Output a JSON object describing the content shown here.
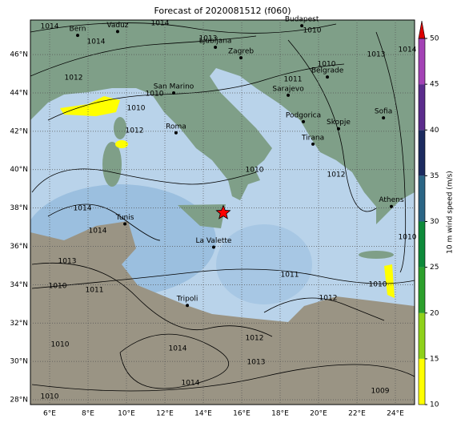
{
  "title": "Forecast of 2020081512 (f060)",
  "map": {
    "lonlim": [
      5,
      25
    ],
    "latlim": [
      27.75,
      47.8
    ],
    "grid": true,
    "xticks": [
      {
        "value": 6,
        "label": "6°E"
      },
      {
        "value": 8,
        "label": "8°E"
      },
      {
        "value": 10,
        "label": "10°E"
      },
      {
        "value": 12,
        "label": "12°E"
      },
      {
        "value": 14,
        "label": "14°E"
      },
      {
        "value": 16,
        "label": "16°E"
      },
      {
        "value": 18,
        "label": "18°E"
      },
      {
        "value": 20,
        "label": "20°E"
      },
      {
        "value": 22,
        "label": "22°E"
      },
      {
        "value": 24,
        "label": "24°E"
      }
    ],
    "yticks": [
      {
        "value": 28,
        "label": "28°N"
      },
      {
        "value": 30,
        "label": "30°N"
      },
      {
        "value": 32,
        "label": "32°N"
      },
      {
        "value": 34,
        "label": "34°N"
      },
      {
        "value": 36,
        "label": "36°N"
      },
      {
        "value": 38,
        "label": "38°N"
      },
      {
        "value": 40,
        "label": "40°N"
      },
      {
        "value": 42,
        "label": "42°N"
      },
      {
        "value": 44,
        "label": "44°N"
      },
      {
        "value": 46,
        "label": "46°N"
      }
    ]
  },
  "cities": [
    {
      "name": "Bern",
      "lon": 7.46,
      "lat": 47.0
    },
    {
      "name": "Vaduz",
      "lon": 9.54,
      "lat": 47.2
    },
    {
      "name": "Budapest",
      "lon": 19.13,
      "lat": 47.5
    },
    {
      "name": "Ljubljana",
      "lon": 14.63,
      "lat": 46.38
    },
    {
      "name": "Zagreb",
      "lon": 15.96,
      "lat": 45.83
    },
    {
      "name": "San Marino",
      "lon": 12.46,
      "lat": 44.0
    },
    {
      "name": "Belgrade",
      "lon": 20.46,
      "lat": 44.83
    },
    {
      "name": "Sarajevo",
      "lon": 18.42,
      "lat": 43.88
    },
    {
      "name": "Roma",
      "lon": 12.58,
      "lat": 41.92
    },
    {
      "name": "Podgorica",
      "lon": 19.21,
      "lat": 42.5
    },
    {
      "name": "Skopje",
      "lon": 21.04,
      "lat": 42.13
    },
    {
      "name": "Sofia",
      "lon": 23.38,
      "lat": 42.7
    },
    {
      "name": "Tirana",
      "lon": 19.71,
      "lat": 41.33
    },
    {
      "name": "Athens",
      "lon": 23.79,
      "lat": 38.08
    },
    {
      "name": "Tunis",
      "lon": 9.92,
      "lat": 37.17
    },
    {
      "name": "La Valette",
      "lon": 14.54,
      "lat": 35.96
    },
    {
      "name": "Tripoli",
      "lon": 13.17,
      "lat": 32.92
    }
  ],
  "marker": {
    "lon": 15.04,
    "lat": 37.75,
    "color": "#ff0000"
  },
  "isobar_labels": [
    1014,
    1014,
    1014,
    1013,
    1010,
    1010,
    1011,
    1012,
    1010,
    1010,
    1012,
    1010,
    1012,
    1014,
    1014,
    1013,
    1010,
    1011,
    1011,
    1010,
    1012,
    1010,
    1014,
    1013,
    1010,
    1014,
    1014,
    1012,
    1013,
    1009,
    1010
  ],
  "colorbar": {
    "label": "10 m wind speed (m/s)",
    "ticks": [
      10,
      15,
      20,
      25,
      30,
      35,
      40,
      45,
      50
    ],
    "colors": [
      "#ffff00",
      "#8fd11a",
      "#2ca02c",
      "#0e8a3a",
      "#2b6585",
      "#1c2b60",
      "#5b2c8c",
      "#a342b5"
    ],
    "extend_color": "#dd0000"
  }
}
